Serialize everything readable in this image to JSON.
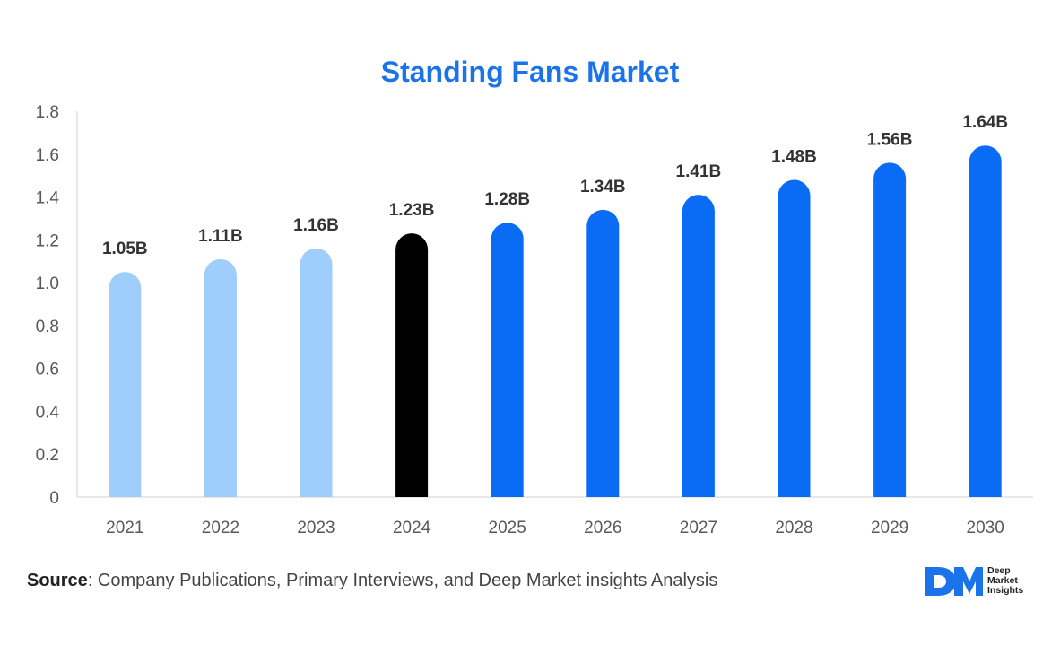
{
  "chart_data": {
    "type": "bar",
    "title": "Standing Fans Market",
    "categories": [
      "2021",
      "2022",
      "2023",
      "2024",
      "2025",
      "2026",
      "2027",
      "2028",
      "2029",
      "2030"
    ],
    "values": [
      1.05,
      1.11,
      1.16,
      1.23,
      1.28,
      1.34,
      1.41,
      1.48,
      1.56,
      1.64
    ],
    "data_labels": [
      "1.05B",
      "1.11B",
      "1.16B",
      "1.23B",
      "1.28B",
      "1.34B",
      "1.41B",
      "1.48B",
      "1.56B",
      "1.64B"
    ],
    "bar_colors": [
      "#9fcdfc",
      "#9fcdfc",
      "#9fcdfc",
      "#000000",
      "#0a6cf5",
      "#0a6cf5",
      "#0a6cf5",
      "#0a6cf5",
      "#0a6cf5",
      "#0a6cf5"
    ],
    "yticks": [
      "0",
      "0.2",
      "0.4",
      "0.6",
      "0.8",
      "1.0",
      "1.2",
      "1.4",
      "1.6",
      "1.8"
    ],
    "ylim": [
      0,
      1.8
    ],
    "xlabel": "",
    "ylabel": "",
    "grid": false,
    "legend": "none"
  },
  "footer": {
    "source_label": "Source",
    "source_text": ": Company Publications, Primary Interviews, and Deep Market insights Analysis"
  },
  "logo": {
    "line1": "Deep",
    "line2": "Market",
    "line3": "Insights",
    "color": "#1a73e8"
  }
}
